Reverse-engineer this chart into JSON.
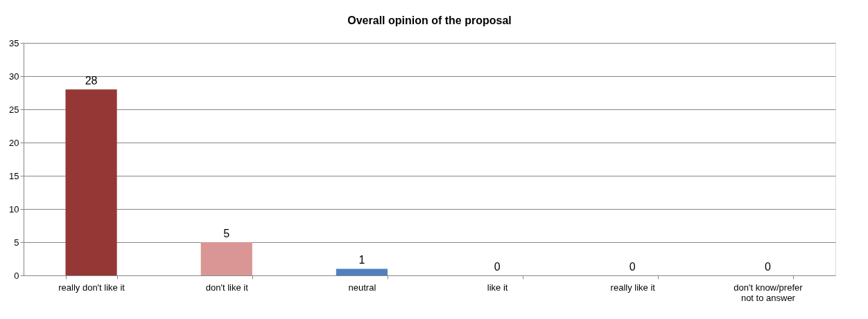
{
  "chart_data": {
    "type": "bar",
    "title": "Overall opinion of the proposal",
    "categories": [
      "really don't like it",
      "don't like it",
      "neutral",
      "like it",
      "really like it",
      "don't know/prefer not to answer"
    ],
    "values": [
      28,
      5,
      1,
      0,
      0,
      0
    ],
    "colors": [
      "#953735",
      "#d99694",
      "#4f81bd",
      "#4f81bd",
      "#4f81bd",
      "#4f81bd"
    ],
    "ylim": [
      0,
      35
    ],
    "yticks": [
      0,
      5,
      10,
      15,
      20,
      25,
      30,
      35
    ],
    "grid": "y",
    "data_labels": true
  }
}
